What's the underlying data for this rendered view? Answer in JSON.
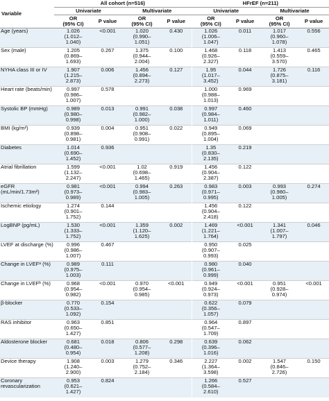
{
  "header": {
    "variable": "Variable",
    "all_cohort": "All cohort (n=516)",
    "hfref": "HFrEF (n=211)",
    "univariate": "Univariate",
    "multivariate": "Multivariate",
    "or": "OR",
    "ci": "(95% CI)",
    "p": "P value"
  },
  "rows": [
    {
      "var": "Age (years)",
      "a_u": [
        "1.026",
        "(1.012–",
        "1.040)"
      ],
      "a_up": "<0.001",
      "a_m": [
        "1.020",
        "(0.990–",
        "1.051)"
      ],
      "a_mp": "0.430",
      "h_u": [
        "1.026",
        "(1.006–",
        "1.047)"
      ],
      "h_up": "0.011",
      "h_m": [
        "1.017",
        "(0.960–",
        "1.078)"
      ],
      "h_mp": "0.556"
    },
    {
      "var": "Sex (male)",
      "a_u": [
        "1.205",
        "(0.869–",
        "1.693)"
      ],
      "a_up": "0.267",
      "a_m": [
        "1.375",
        "(0.944–",
        "2.004)"
      ],
      "a_mp": "0.100",
      "h_u": [
        "1.468",
        "(0.926–",
        "2.327)"
      ],
      "h_up": "0.118",
      "h_m": [
        "1.413",
        "(0.559–",
        "3.570)"
      ],
      "h_mp": "0.465"
    },
    {
      "var": "NYHA class III or IV",
      "a_u": [
        "1.907",
        "(1.215–",
        "2.873)"
      ],
      "a_up": "0.006",
      "a_m": [
        "1.456",
        "(0.894–",
        "2.273)"
      ],
      "a_mp": "0.127",
      "h_u": [
        "1.95",
        "(1.017–",
        "3.452)"
      ],
      "h_up": "0.044",
      "h_m": [
        "1.726",
        "(0.875–",
        "3.181)"
      ],
      "h_mp": "0.116"
    },
    {
      "var": "Heart rate (beats/min)",
      "a_u": [
        "0.997",
        "(0.986–",
        "1.007)"
      ],
      "a_up": "0.578",
      "a_m": [
        "",
        "",
        ""
      ],
      "a_mp": "",
      "h_u": [
        "1.000",
        "(0.988–",
        "1.013)"
      ],
      "h_up": "0.969",
      "h_m": [
        "",
        "",
        ""
      ],
      "h_mp": ""
    },
    {
      "var": "Systolic BP (mmHg)",
      "a_u": [
        "0.989",
        "(0.980–",
        "0.998)"
      ],
      "a_up": "0.013",
      "a_m": [
        "0.991",
        "(0.982–",
        "1.000)"
      ],
      "a_mp": "0.038",
      "h_u": [
        "0.997",
        "(0.984–",
        "1.011)"
      ],
      "h_up": "0.460",
      "h_m": [
        "",
        "",
        ""
      ],
      "h_mp": ""
    },
    {
      "var": "BMI (kg/m²)",
      "a_u": [
        "0.939",
        "(0.898–",
        "0.981)"
      ],
      "a_up": "0.004",
      "a_m": [
        "0.951",
        "(0.908–",
        "0.991)"
      ],
      "a_mp": "0.022",
      "h_u": [
        "0.949",
        "(0.895–",
        "1.004)"
      ],
      "h_up": "0.069",
      "h_m": [
        "",
        "",
        ""
      ],
      "h_mp": ""
    },
    {
      "var": "Diabetes",
      "a_u": [
        "1.014",
        "(0.690–",
        "1.452)"
      ],
      "a_up": "0.936",
      "a_m": [
        "",
        "",
        ""
      ],
      "a_mp": "",
      "h_u": [
        "1.35",
        "(0.830–",
        "2.135)"
      ],
      "h_up": "0.219",
      "h_m": [
        "",
        "",
        ""
      ],
      "h_mp": ""
    },
    {
      "var": "Atrial fibrillation",
      "a_u": [
        "1.599",
        "(1.132–",
        "2.247)"
      ],
      "a_up": "<0.001",
      "a_m": [
        "1.02",
        "(0.698–",
        "1.465)"
      ],
      "a_mp": "0.919",
      "h_u": [
        "1.456",
        "(0.904–",
        "2.387)"
      ],
      "h_up": "0.122",
      "h_m": [
        "",
        "",
        ""
      ],
      "h_mp": ""
    },
    {
      "var": "eGFR (mL/min/1.73m²)",
      "a_u": [
        "0.981",
        "(0.973–",
        "0.989)"
      ],
      "a_up": "<0.001",
      "a_m": [
        "0.994",
        "(0.983–",
        "1.005)"
      ],
      "a_mp": "0.263",
      "h_u": [
        "0.983",
        "(0.971–",
        "0.995)"
      ],
      "h_up": "0.003",
      "h_m": [
        "0.993",
        "(0.980–",
        "1.005)"
      ],
      "h_mp": "0.274"
    },
    {
      "var": "Ischemic etiology",
      "a_u": [
        "1.274",
        "(0.901–",
        "1.752)"
      ],
      "a_up": "0.144",
      "a_m": [
        "",
        "",
        ""
      ],
      "a_mp": "",
      "h_u": [
        "1.456",
        "(0.904–",
        "2.418)"
      ],
      "h_up": "0.122",
      "h_m": [
        "",
        "",
        ""
      ],
      "h_mp": ""
    },
    {
      "var": "LogBNP (pg/mL)",
      "a_u": [
        "1.530",
        "(1.333–",
        "1.752)"
      ],
      "a_up": "<0.001",
      "a_m": [
        "1.359",
        "(1.120–",
        "1.625)"
      ],
      "a_mp": "0.002",
      "h_u": [
        "1.469",
        "(1.221–",
        "1.764)"
      ],
      "h_up": "<0.001",
      "h_m": [
        "1.341",
        "(1.007–",
        "1.797)"
      ],
      "h_mp": "0.046"
    },
    {
      "var": "LVEF at discharge (%)",
      "a_u": [
        "0.996",
        "(0.986–",
        "1.007)"
      ],
      "a_up": "0.467",
      "a_m": [
        "",
        "",
        ""
      ],
      "a_mp": "",
      "h_u": [
        "0.950",
        "(0.907–",
        "0.993)"
      ],
      "h_up": "0.025",
      "h_m": [
        "",
        "",
        ""
      ],
      "h_mp": ""
    },
    {
      "var": "Change in LVEFᵃ (%)",
      "a_u": [
        "0.989",
        "(0.975–",
        "1.003)"
      ],
      "a_up": "0.111",
      "a_m": [
        "",
        "",
        ""
      ],
      "a_mp": "",
      "h_u": [
        "0.980",
        "(0.961–",
        "0.999)"
      ],
      "h_up": "0.040",
      "h_m": [
        "",
        "",
        ""
      ],
      "h_mp": ""
    },
    {
      "var": "Change in LVEFᵇ (%)",
      "a_u": [
        "0.968",
        "(0.954–",
        "0.982)"
      ],
      "a_up": "<0.001",
      "a_m": [
        "0.970",
        "(0.954–",
        "0.985)"
      ],
      "a_mp": "<0.001",
      "h_u": [
        "0.949",
        "(0.924–",
        "0.973)"
      ],
      "h_up": "<0.001",
      "h_m": [
        "0.951",
        "(0.928–",
        "0.974)"
      ],
      "h_mp": "<0.001"
    },
    {
      "var": "β-blocker",
      "a_u": [
        "0.770",
        "(0.533–",
        "1.092)"
      ],
      "a_up": "0.154",
      "a_m": [
        "",
        "",
        ""
      ],
      "a_mp": "",
      "h_u": [
        "0.622",
        "(0.356–",
        "1.057)"
      ],
      "h_up": "0.079",
      "h_m": [
        "",
        "",
        ""
      ],
      "h_mp": ""
    },
    {
      "var": "RAS inhibitor",
      "a_u": [
        "0.963",
        "(0.650–",
        "1.427)"
      ],
      "a_up": "0.851",
      "a_m": [
        "",
        "",
        ""
      ],
      "a_mp": "",
      "h_u": [
        "0.964",
        "(0.547–",
        "1.709)"
      ],
      "h_up": "0.897",
      "h_m": [
        "",
        "",
        ""
      ],
      "h_mp": ""
    },
    {
      "var": "Aldosterone blocker",
      "a_u": [
        "0.681",
        "(0.480–",
        "0.954)"
      ],
      "a_up": "0.018",
      "a_m": [
        "0.806",
        "(0.577–",
        "1.208)"
      ],
      "a_mp": "0.298",
      "h_u": [
        "0.639",
        "(0.396–",
        "1.016)"
      ],
      "h_up": "0.062",
      "h_m": [
        "",
        "",
        ""
      ],
      "h_mp": ""
    },
    {
      "var": "Device therapy",
      "a_u": [
        "1.908",
        "(1.240–",
        "2.900)"
      ],
      "a_up": "0.003",
      "a_m": [
        "1.279",
        "(0.752–",
        "2.184)"
      ],
      "a_mp": "0.346",
      "h_u": [
        "2.227",
        "(1.364–",
        "3.598)"
      ],
      "h_up": "0.002",
      "h_m": [
        "1.547",
        "(0.846–",
        "2.726)"
      ],
      "h_mp": "0.150"
    },
    {
      "var": "Coronary revascularization",
      "a_u": [
        "0.953",
        "(0.621–",
        "1.427)"
      ],
      "a_up": "0.824",
      "a_m": [
        "",
        "",
        ""
      ],
      "a_mp": "",
      "h_u": [
        "1.266",
        "(0.584–",
        "2.610)"
      ],
      "h_up": "0.527",
      "h_m": [
        "",
        "",
        ""
      ],
      "h_mp": ""
    }
  ]
}
